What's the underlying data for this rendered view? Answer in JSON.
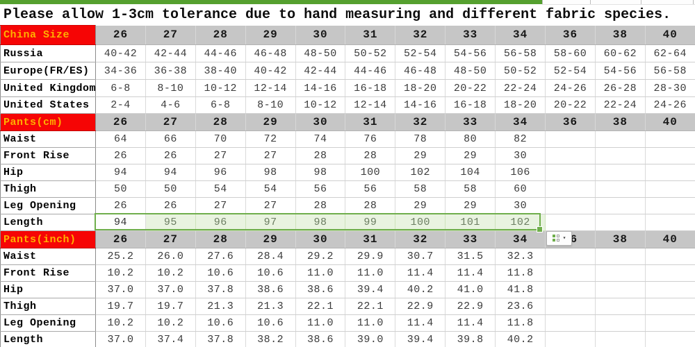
{
  "title": "Please allow 1-3cm tolerance due to hand measuring and different fabric species.",
  "colors": {
    "label_bg": "#f60505",
    "label_text": "#ffb000",
    "header_bg": "#c6c6c6",
    "selection_green": "#6fae4b",
    "highlight_bg": "#e9f3e0",
    "top_line_green": "#55a02f"
  },
  "overlay": {
    "autofill_icon": "autofill-options-grid-icon",
    "autofill_caret": "▾"
  },
  "table": {
    "columns": [
      "26",
      "27",
      "28",
      "29",
      "30",
      "31",
      "32",
      "33",
      "34",
      "36",
      "38",
      "40"
    ],
    "rows": [
      {
        "type": "size-header",
        "label": "China Size",
        "values": [
          "26",
          "27",
          "28",
          "29",
          "30",
          "31",
          "32",
          "33",
          "34",
          "36",
          "38",
          "40"
        ]
      },
      {
        "type": "data",
        "label": "Russia",
        "values": [
          "40-42",
          "42-44",
          "44-46",
          "46-48",
          "48-50",
          "50-52",
          "52-54",
          "54-56",
          "56-58",
          "58-60",
          "60-62",
          "62-64"
        ]
      },
      {
        "type": "data",
        "label": "Europe(FR/ES)",
        "values": [
          "34-36",
          "36-38",
          "38-40",
          "40-42",
          "42-44",
          "44-46",
          "46-48",
          "48-50",
          "50-52",
          "52-54",
          "54-56",
          "56-58"
        ]
      },
      {
        "type": "data",
        "label": "United Kingdom",
        "values": [
          "6-8",
          "8-10",
          "10-12",
          "12-14",
          "14-16",
          "16-18",
          "18-20",
          "20-22",
          "22-24",
          "24-26",
          "26-28",
          "28-30"
        ]
      },
      {
        "type": "data",
        "label": "United States",
        "values": [
          "2-4",
          "4-6",
          "6-8",
          "8-10",
          "10-12",
          "12-14",
          "14-16",
          "16-18",
          "18-20",
          "20-22",
          "22-24",
          "24-26"
        ]
      },
      {
        "type": "section-header",
        "label": "Pants(cm)",
        "values": [
          "26",
          "27",
          "28",
          "29",
          "30",
          "31",
          "32",
          "33",
          "34",
          "36",
          "38",
          "40"
        ]
      },
      {
        "type": "data",
        "label": "Waist",
        "values": [
          "64",
          "66",
          "70",
          "72",
          "74",
          "76",
          "78",
          "80",
          "82",
          "",
          "",
          ""
        ]
      },
      {
        "type": "data",
        "label": "Front Rise",
        "values": [
          "26",
          "26",
          "27",
          "27",
          "28",
          "28",
          "29",
          "29",
          "30",
          "",
          "",
          ""
        ]
      },
      {
        "type": "data",
        "label": "Hip",
        "values": [
          "94",
          "94",
          "96",
          "98",
          "98",
          "100",
          "102",
          "104",
          "106",
          "",
          "",
          ""
        ]
      },
      {
        "type": "data",
        "label": "Thigh",
        "values": [
          "50",
          "50",
          "54",
          "54",
          "56",
          "56",
          "58",
          "58",
          "60",
          "",
          "",
          ""
        ]
      },
      {
        "type": "data",
        "label": "Leg Opening",
        "values": [
          "26",
          "26",
          "27",
          "27",
          "28",
          "28",
          "29",
          "29",
          "30",
          "",
          "",
          ""
        ]
      },
      {
        "type": "highlight",
        "label": "Length",
        "values": [
          "94",
          "95",
          "96",
          "97",
          "98",
          "99",
          "100",
          "101",
          "102",
          "",
          "",
          ""
        ]
      },
      {
        "type": "section-header",
        "label": "Pants(inch)",
        "values": [
          "26",
          "27",
          "28",
          "29",
          "30",
          "31",
          "32",
          "33",
          "34",
          "36",
          "38",
          "40"
        ]
      },
      {
        "type": "data",
        "label": "Waist",
        "values": [
          "25.2",
          "26.0",
          "27.6",
          "28.4",
          "29.2",
          "29.9",
          "30.7",
          "31.5",
          "32.3",
          "",
          "",
          ""
        ]
      },
      {
        "type": "data",
        "label": "Front Rise",
        "values": [
          "10.2",
          "10.2",
          "10.6",
          "10.6",
          "11.0",
          "11.0",
          "11.4",
          "11.4",
          "11.8",
          "",
          "",
          ""
        ]
      },
      {
        "type": "data",
        "label": "Hip",
        "values": [
          "37.0",
          "37.0",
          "37.8",
          "38.6",
          "38.6",
          "39.4",
          "40.2",
          "41.0",
          "41.8",
          "",
          "",
          ""
        ]
      },
      {
        "type": "data",
        "label": "Thigh",
        "values": [
          "19.7",
          "19.7",
          "21.3",
          "21.3",
          "22.1",
          "22.1",
          "22.9",
          "22.9",
          "23.6",
          "",
          "",
          ""
        ]
      },
      {
        "type": "data",
        "label": "Leg Opening",
        "values": [
          "10.2",
          "10.2",
          "10.6",
          "10.6",
          "11.0",
          "11.0",
          "11.4",
          "11.4",
          "11.8",
          "",
          "",
          ""
        ]
      },
      {
        "type": "data",
        "label": "Length",
        "values": [
          "37.0",
          "37.4",
          "37.8",
          "38.2",
          "38.6",
          "39.0",
          "39.4",
          "39.8",
          "40.2",
          "",
          "",
          ""
        ]
      }
    ]
  }
}
